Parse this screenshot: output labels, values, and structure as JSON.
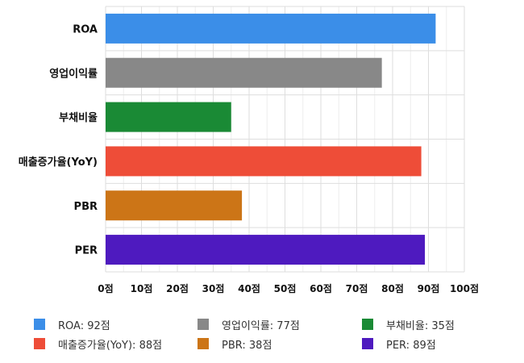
{
  "chart_data": {
    "type": "bar",
    "orientation": "horizontal",
    "categories": [
      "ROA",
      "영업이익률",
      "부채비율",
      "매출증가율(YoY)",
      "PBR",
      "PER"
    ],
    "values": [
      92,
      77,
      35,
      88,
      38,
      89
    ],
    "colors": [
      "#3b8ee8",
      "#888888",
      "#1a8a35",
      "#ee4d38",
      "#cc7517",
      "#4e1abf"
    ],
    "xlim": [
      0,
      100
    ],
    "x_ticks": [
      "0점",
      "10점",
      "20점",
      "30점",
      "40점",
      "50점",
      "60점",
      "70점",
      "80점",
      "90점",
      "100점"
    ],
    "grid": true,
    "legend_position": "bottom",
    "legend": [
      {
        "label": "ROA: 92점",
        "color": "#3b8ee8"
      },
      {
        "label": "영업이익률: 77점",
        "color": "#888888"
      },
      {
        "label": "부채비율: 35점",
        "color": "#1a8a35"
      },
      {
        "label": "매출증가율(YoY): 88점",
        "color": "#ee4d38"
      },
      {
        "label": "PBR: 38점",
        "color": "#cc7517"
      },
      {
        "label": "PER: 89점",
        "color": "#4e1abf"
      }
    ]
  }
}
